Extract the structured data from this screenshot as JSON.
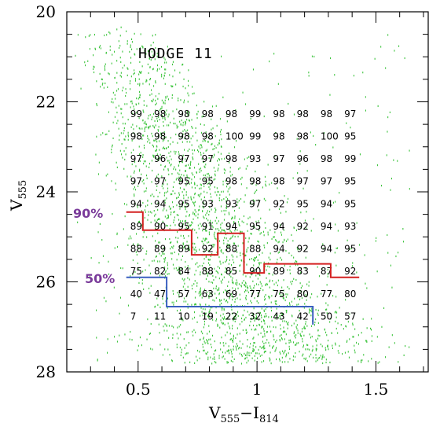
{
  "chart_data": {
    "type": "scatter",
    "title": "HODGE 11",
    "xlabel": {
      "main": "V",
      "sub1": "555",
      "dash": "−I",
      "sub2": "814"
    },
    "ylabel": {
      "main": "V",
      "sub": "555"
    },
    "xlim": [
      0.2,
      1.72
    ],
    "ylim": [
      28,
      20
    ],
    "x_ticks": [
      "0.5",
      "1",
      "1.5"
    ],
    "x_tick_values": [
      0.5,
      1.0,
      1.5
    ],
    "y_ticks": [
      "20",
      "22",
      "24",
      "26",
      "28"
    ],
    "y_tick_values": [
      20,
      22,
      24,
      26,
      28
    ],
    "grid": false,
    "completeness_table": {
      "x_centers": [
        0.5,
        0.6,
        0.7,
        0.8,
        0.9,
        1.0,
        1.1,
        1.2,
        1.3,
        1.4
      ],
      "y_centers": [
        22.25,
        22.75,
        23.25,
        23.75,
        24.25,
        24.75,
        25.25,
        25.75,
        26.25,
        26.75
      ],
      "rows": [
        [
          "99",
          "98",
          "98",
          "98",
          "98",
          "99",
          "98",
          "98",
          "98",
          "97"
        ],
        [
          "98",
          "98",
          "98",
          "98",
          "100",
          "99",
          "98",
          "98",
          "100",
          "95"
        ],
        [
          "97",
          "96",
          "97",
          "97",
          "98",
          "93",
          "97",
          "96",
          "98",
          "99"
        ],
        [
          "97",
          "97",
          "95",
          "95",
          "98",
          "98",
          "98",
          "97",
          "97",
          "95"
        ],
        [
          "94",
          "94",
          "95",
          "93",
          "93",
          "97",
          "92",
          "95",
          "94",
          "95"
        ],
        [
          "89",
          "90",
          "95",
          "91",
          "94",
          "95",
          "94",
          "92",
          "94",
          "93"
        ],
        [
          "88",
          "89",
          "89",
          "92",
          "88",
          "88",
          "94",
          "92",
          "94",
          "95"
        ],
        [
          "75",
          "82",
          "84",
          "88",
          "85",
          "90",
          "89",
          "83",
          "87",
          "92"
        ],
        [
          "40",
          "47",
          "57",
          "63",
          "69",
          "77",
          "75",
          "80",
          "77",
          "80"
        ],
        [
          "7",
          "11",
          "10",
          "19",
          "22",
          "32",
          "43",
          "42",
          "50",
          "57"
        ]
      ]
    },
    "series": [
      {
        "name": "90%",
        "color": "#d42020",
        "x": [
          0.45,
          0.52,
          0.52,
          0.725,
          0.725,
          0.835,
          0.835,
          0.945,
          0.945,
          1.03,
          1.03,
          1.31,
          1.31,
          1.43
        ],
        "y": [
          24.45,
          24.45,
          24.85,
          24.85,
          25.4,
          25.4,
          24.92,
          24.92,
          25.8,
          25.8,
          25.6,
          25.6,
          25.9,
          25.9
        ]
      },
      {
        "name": "50%",
        "color": "#3a5fc0",
        "x": [
          0.45,
          0.62,
          0.62,
          1.235,
          1.235
        ],
        "y": [
          25.9,
          25.9,
          26.55,
          26.55,
          26.95
        ]
      }
    ],
    "scatter_color": "#3cc43c"
  }
}
